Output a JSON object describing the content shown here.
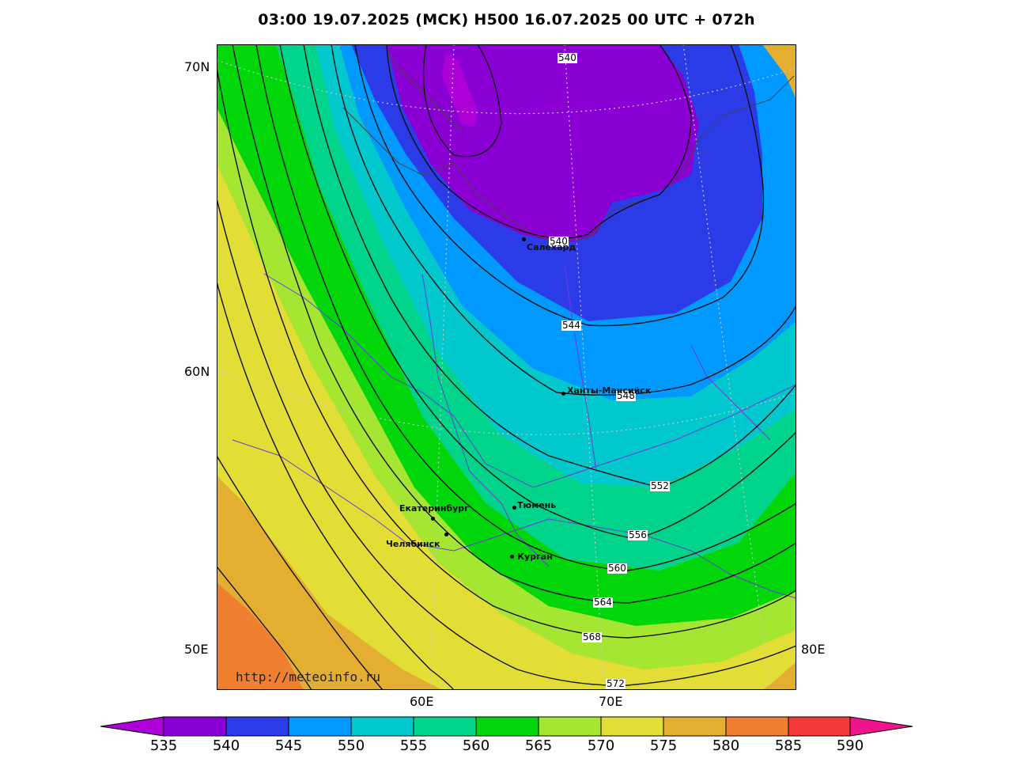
{
  "title": "03:00 19.07.2025 (МСК) H500  16.07.2025 00 UTC + 072h",
  "colors": {
    "c535": "#8a00d4",
    "c540": "#2b3be8",
    "c545": "#0099ff",
    "c550": "#00c8cc",
    "c555": "#00d48a",
    "c560": "#00d60a",
    "c565": "#a4e632",
    "c570": "#e2de36",
    "c575": "#e4ae30",
    "c580": "#ee8030",
    "c585": "#f53a3a",
    "c590": "#ef148c",
    "c_low": "#ad00d6"
  },
  "axes": {
    "lat_labels": [
      "70N",
      "60N",
      "50E"
    ],
    "lon_labels": [
      "60E",
      "70E",
      "80E"
    ]
  },
  "cities": [
    {
      "name": "Салехард"
    },
    {
      "name": "Ханты-Мансийск"
    },
    {
      "name": "Екатеринбург"
    },
    {
      "name": "Тюмень"
    },
    {
      "name": "Челябинск"
    },
    {
      "name": "Курган"
    }
  ],
  "contour_labels": [
    "540",
    "540",
    "544",
    "548",
    "552",
    "556",
    "560",
    "564",
    "568",
    "572"
  ],
  "url": "http://meteoinfo.ru",
  "colorbar": {
    "ticks": [
      "535",
      "540",
      "545",
      "550",
      "555",
      "560",
      "565",
      "570",
      "575",
      "580",
      "585",
      "590"
    ]
  }
}
